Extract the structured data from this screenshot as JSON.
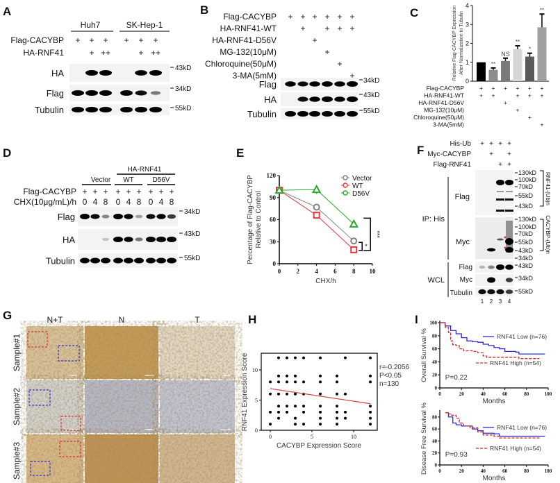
{
  "panel_labels": [
    "A",
    "B",
    "C",
    "D",
    "E",
    "F",
    "G",
    "H",
    "I"
  ],
  "A": {
    "cell_lines": [
      "Huh7",
      "SK-Hep-1"
    ],
    "rows": [
      {
        "label": "Flag-CACYBP",
        "marks": [
          "+",
          "+",
          "+",
          "+",
          "+",
          "+"
        ]
      },
      {
        "label": "HA-RNF41",
        "marks": [
          "",
          "+",
          "++",
          "",
          "+",
          "++"
        ]
      }
    ],
    "blots": [
      {
        "label": "HA",
        "marker": "43kD",
        "bands": [
          0,
          1,
          1,
          0,
          0.95,
          1
        ]
      },
      {
        "label": "Flag",
        "marker": "34kD",
        "bands": [
          1,
          1,
          1,
          1,
          0.8,
          0.35
        ]
      },
      {
        "label": "Tubulin",
        "marker": "55kD",
        "bands": [
          1,
          1,
          1,
          1,
          1,
          1
        ]
      }
    ]
  },
  "B": {
    "rows": [
      {
        "label": "Flag-CACYBP",
        "marks": [
          "+",
          "+",
          "+",
          "+",
          "+",
          "+"
        ]
      },
      {
        "label": "HA-RNF41-WT",
        "marks": [
          "",
          "+",
          "",
          "+",
          "+",
          "+"
        ]
      },
      {
        "label": "HA-RNF41-D56V",
        "marks": [
          "",
          "",
          "+",
          "",
          "",
          ""
        ]
      },
      {
        "label": "MG-132(10μM)",
        "marks": [
          "",
          "",
          "",
          "+",
          "",
          ""
        ]
      },
      {
        "label": "Chloroquine(50μM)",
        "marks": [
          "",
          "",
          "",
          "",
          "+",
          ""
        ]
      },
      {
        "label": "3-MA(5mM)",
        "marks": [
          "",
          "",
          "",
          "",
          "",
          "+"
        ]
      }
    ],
    "blots": [
      {
        "label": "Flag",
        "marker": "34kD",
        "bands": [
          0.9,
          0.8,
          0.9,
          0.95,
          0.9,
          1
        ]
      },
      {
        "label": "HA",
        "marker": "43kD",
        "bands": [
          0,
          0.8,
          0.9,
          1,
          0.9,
          1
        ]
      },
      {
        "label": "Tubulin",
        "marker": "55kD",
        "bands": [
          1,
          1,
          1,
          1,
          1,
          1
        ]
      }
    ]
  },
  "D": {
    "group_header": "HA-RNF41",
    "groups": [
      "Vector",
      "WT",
      "D56V"
    ],
    "rows": [
      {
        "label": "Flag-CACYBP",
        "marks": [
          "+",
          "+",
          "+",
          "+",
          "+",
          "+",
          "+",
          "+",
          "+"
        ]
      },
      {
        "label": "CHX(10μg/mL)/h",
        "marks": [
          "0",
          "4",
          "8",
          "0",
          "4",
          "8",
          "0",
          "4",
          "8"
        ]
      }
    ],
    "blots": [
      {
        "label": "Flag",
        "marker": "34kD",
        "bands": [
          1,
          0.8,
          0.3,
          1,
          0.85,
          0.2,
          0.8,
          0.85,
          0.6
        ]
      },
      {
        "label": "HA",
        "marker": "43kD",
        "bands": [
          0,
          0,
          0.05,
          1,
          0.85,
          0.35,
          1,
          1,
          1
        ]
      },
      {
        "label": "Tubulin",
        "marker": "55kD",
        "bands": [
          1,
          1,
          1,
          1,
          1,
          1,
          1,
          1,
          1
        ]
      }
    ]
  },
  "F": {
    "rows": [
      {
        "label": "His-Ub",
        "marks": [
          "+",
          "+",
          "+",
          "+"
        ]
      },
      {
        "label": "Myc-CACYBP",
        "marks": [
          "",
          "+",
          "",
          "+"
        ]
      },
      {
        "label": "Flag-RNF41",
        "marks": [
          "",
          "",
          "+",
          "+"
        ]
      }
    ],
    "ip_label": "IP: His",
    "wcl_label": "WCL",
    "ip_blots": [
      {
        "label": "Flag",
        "markers": [
          "130kD",
          "100kD",
          "70kD",
          "55kD",
          "43kD"
        ],
        "bracket": "RNF41-(Ub)n"
      },
      {
        "label": "Myc",
        "markers": [
          "130kD",
          "100kD",
          "70kD",
          "55kD",
          "43kD",
          "34kD"
        ],
        "bracket": "CACYBP-(Ub)n"
      }
    ],
    "wcl_blots": [
      {
        "label": "Flag",
        "marker": "43kD"
      },
      {
        "label": "Myc",
        "marker": "34kD"
      },
      {
        "label": "Tubulin",
        "marker": "55kD"
      }
    ],
    "lanes": [
      "1",
      "2",
      "3",
      "4"
    ]
  },
  "G": {
    "columns": [
      "N+T",
      "N",
      "T"
    ],
    "rows": [
      "Sample#1",
      "Sample#2",
      "Sample#3"
    ]
  },
  "chart_data": [
    {
      "id": "C",
      "type": "bar",
      "ylabel": "Relative Flag-CACYBP Expression After Normalization to Tubulin",
      "ylabel_lines": [
        "Relative Flag-CACYBP Expression",
        "After Normalization to Tubulin"
      ],
      "ylim": [
        0,
        4
      ],
      "yticks": [
        "0",
        "1",
        "2",
        "3",
        "4"
      ],
      "values": [
        1.0,
        0.6,
        1.07,
        1.7,
        1.3,
        2.85
      ],
      "errors": [
        0,
        0.1,
        0.15,
        0.17,
        0.18,
        0.7
      ],
      "significance": [
        "",
        "**",
        "NS",
        "**",
        "*",
        "**"
      ],
      "colors": [
        "#000000",
        "#8c8c8c",
        "#7a7a7a",
        "#d6d6d6",
        "#5a5a5a",
        "#a0a0a0"
      ],
      "rows": [
        {
          "label": "Flag-CACYBP",
          "marks": [
            "+",
            "+",
            "+",
            "+",
            "+",
            "+"
          ]
        },
        {
          "label": "HA-RNF41-WT",
          "marks": [
            "+",
            "+",
            "",
            "+",
            "+",
            "+"
          ]
        },
        {
          "label": "HA-RNF41-D56V",
          "marks": [
            "",
            "",
            "+",
            "",
            "",
            ""
          ]
        },
        {
          "label": "MG-132(10μM)",
          "marks": [
            "",
            "",
            "",
            "+",
            "",
            ""
          ]
        },
        {
          "label": "Chloroquine(50μM)",
          "marks": [
            "",
            "",
            "",
            "",
            "+",
            ""
          ]
        },
        {
          "label": "3-MA(5mM)",
          "marks": [
            "",
            "",
            "",
            "",
            "",
            "+"
          ]
        }
      ]
    },
    {
      "id": "E",
      "type": "line",
      "xlabel": "CHX/h",
      "ylabel_lines": [
        "Percentage of Flag-CACYBP",
        "Relative to Control"
      ],
      "xlim": [
        0,
        10
      ],
      "ylim": [
        0,
        120
      ],
      "xticks": [
        "0",
        "2",
        "4",
        "6",
        "8",
        "10"
      ],
      "yticks": [
        "0",
        "30",
        "60",
        "90",
        "120"
      ],
      "x": [
        0,
        4,
        8
      ],
      "series": [
        {
          "name": "Vector",
          "values": [
            100,
            77,
            31
          ],
          "errors": [
            0,
            3,
            4
          ],
          "color": "#808080",
          "marker": "circle"
        },
        {
          "name": "WT",
          "values": [
            100,
            66,
            19
          ],
          "errors": [
            0,
            3,
            2
          ],
          "color": "#e8373f",
          "marker": "square"
        },
        {
          "name": "D56V",
          "values": [
            100,
            101,
            54
          ],
          "errors": [
            0,
            6,
            5
          ],
          "color": "#2aa82a",
          "marker": "triangle"
        }
      ],
      "annotations": [
        "*",
        "***"
      ]
    },
    {
      "id": "H",
      "type": "scatter",
      "xlabel": "CACYBP Expression Score",
      "ylabel": "RNF41 Expression Score",
      "xticks": [
        "0",
        "5",
        "10"
      ],
      "yticks": [
        "0",
        "5",
        "10"
      ],
      "xlim": [
        -0.5,
        12.8
      ],
      "ylim": [
        0,
        13
      ],
      "points": [
        [
          0,
          8
        ],
        [
          0,
          6
        ],
        [
          0,
          3
        ],
        [
          0,
          1
        ],
        [
          1,
          12
        ],
        [
          1,
          9
        ],
        [
          1,
          8
        ],
        [
          1,
          6
        ],
        [
          1,
          4
        ],
        [
          1,
          3
        ],
        [
          1,
          2
        ],
        [
          2,
          12
        ],
        [
          2,
          9
        ],
        [
          2,
          8
        ],
        [
          2,
          6
        ],
        [
          2,
          4
        ],
        [
          2,
          3
        ],
        [
          3,
          12
        ],
        [
          3,
          9
        ],
        [
          3,
          8
        ],
        [
          3,
          6
        ],
        [
          3,
          4
        ],
        [
          3,
          2
        ],
        [
          3,
          1
        ],
        [
          4,
          12
        ],
        [
          4,
          8
        ],
        [
          4,
          6
        ],
        [
          4,
          4
        ],
        [
          4,
          3
        ],
        [
          4,
          1
        ],
        [
          6,
          12
        ],
        [
          6,
          9
        ],
        [
          6,
          8
        ],
        [
          6,
          6
        ],
        [
          6,
          4
        ],
        [
          6,
          3
        ],
        [
          6,
          2
        ],
        [
          6,
          1
        ],
        [
          8,
          9
        ],
        [
          8,
          8
        ],
        [
          8,
          6
        ],
        [
          8,
          4
        ],
        [
          8,
          3
        ],
        [
          8,
          2
        ],
        [
          8,
          1
        ],
        [
          9,
          12
        ],
        [
          9,
          6
        ],
        [
          9,
          3
        ],
        [
          9,
          2
        ],
        [
          12,
          12
        ],
        [
          12,
          9
        ],
        [
          12,
          8
        ],
        [
          12,
          4
        ],
        [
          12,
          3
        ],
        [
          12,
          2
        ],
        [
          12,
          1
        ]
      ],
      "fit_line": [
        [
          0,
          6.9
        ],
        [
          12,
          4.4
        ]
      ],
      "stats": [
        "r=-0.2056",
        "P<0.05",
        "n=130"
      ]
    },
    {
      "id": "I-top",
      "type": "line",
      "xlabel": "Months",
      "ylabel": "Overall Survival %",
      "xlim": [
        0,
        100
      ],
      "ylim": [
        0,
        100
      ],
      "xticks": [
        "0",
        "20",
        "40",
        "60",
        "80",
        "100"
      ],
      "yticks": [
        "0",
        "20",
        "40",
        "60",
        "80",
        "100"
      ],
      "series": [
        {
          "name": "RNF41 Low (n=76)",
          "color": "#2b2bc8",
          "points": [
            [
              0,
              100
            ],
            [
              5,
              95
            ],
            [
              10,
              88
            ],
            [
              15,
              83
            ],
            [
              20,
              77
            ],
            [
              25,
              72
            ],
            [
              30,
              71
            ],
            [
              35,
              70
            ],
            [
              40,
              67
            ],
            [
              45,
              65
            ],
            [
              50,
              62
            ],
            [
              55,
              60
            ],
            [
              60,
              56
            ],
            [
              70,
              55
            ],
            [
              73,
              52
            ],
            [
              97,
              52
            ]
          ]
        },
        {
          "name": "RNF41 High (n=54)",
          "color": "#d42a2a",
          "points": [
            [
              0,
              100
            ],
            [
              5,
              93
            ],
            [
              8,
              85
            ],
            [
              10,
              72
            ],
            [
              12,
              66
            ],
            [
              15,
              65
            ],
            [
              18,
              60
            ],
            [
              22,
              57
            ],
            [
              30,
              56
            ],
            [
              35,
              54
            ],
            [
              40,
              49
            ],
            [
              43,
              47
            ],
            [
              70,
              47
            ],
            [
              73,
              45
            ],
            [
              92,
              45
            ]
          ]
        }
      ],
      "pvalue": "P=0.22"
    },
    {
      "id": "I-bottom",
      "type": "line",
      "xlabel": "Months",
      "ylabel": "Disease Free Survival %",
      "xlim": [
        0,
        100
      ],
      "ylim": [
        0,
        88
      ],
      "xticks": [
        "0",
        "20",
        "40",
        "60",
        "80",
        "100"
      ],
      "yticks": [
        "0",
        "20",
        "40",
        "60",
        "80"
      ],
      "series": [
        {
          "name": "RNF41 Low (n=76)",
          "color": "#2b2bc8",
          "points": [
            [
              5,
              87
            ],
            [
              8,
              80
            ],
            [
              12,
              70
            ],
            [
              15,
              67
            ],
            [
              20,
              65
            ],
            [
              25,
              65
            ],
            [
              30,
              60
            ],
            [
              35,
              57
            ],
            [
              40,
              53
            ],
            [
              45,
              53
            ],
            [
              50,
              52
            ],
            [
              55,
              48
            ],
            [
              97,
              48
            ]
          ]
        },
        {
          "name": "RNF41 High (n=54)",
          "color": "#d42a2a",
          "points": [
            [
              5,
              87
            ],
            [
              8,
              85
            ],
            [
              10,
              83
            ],
            [
              15,
              78
            ],
            [
              18,
              70
            ],
            [
              22,
              65
            ],
            [
              28,
              62
            ],
            [
              35,
              55
            ],
            [
              40,
              50
            ],
            [
              50,
              48
            ],
            [
              55,
              45
            ],
            [
              60,
              45
            ],
            [
              85,
              45
            ],
            [
              92,
              45
            ]
          ]
        }
      ],
      "pvalue": "P=0.93"
    }
  ]
}
